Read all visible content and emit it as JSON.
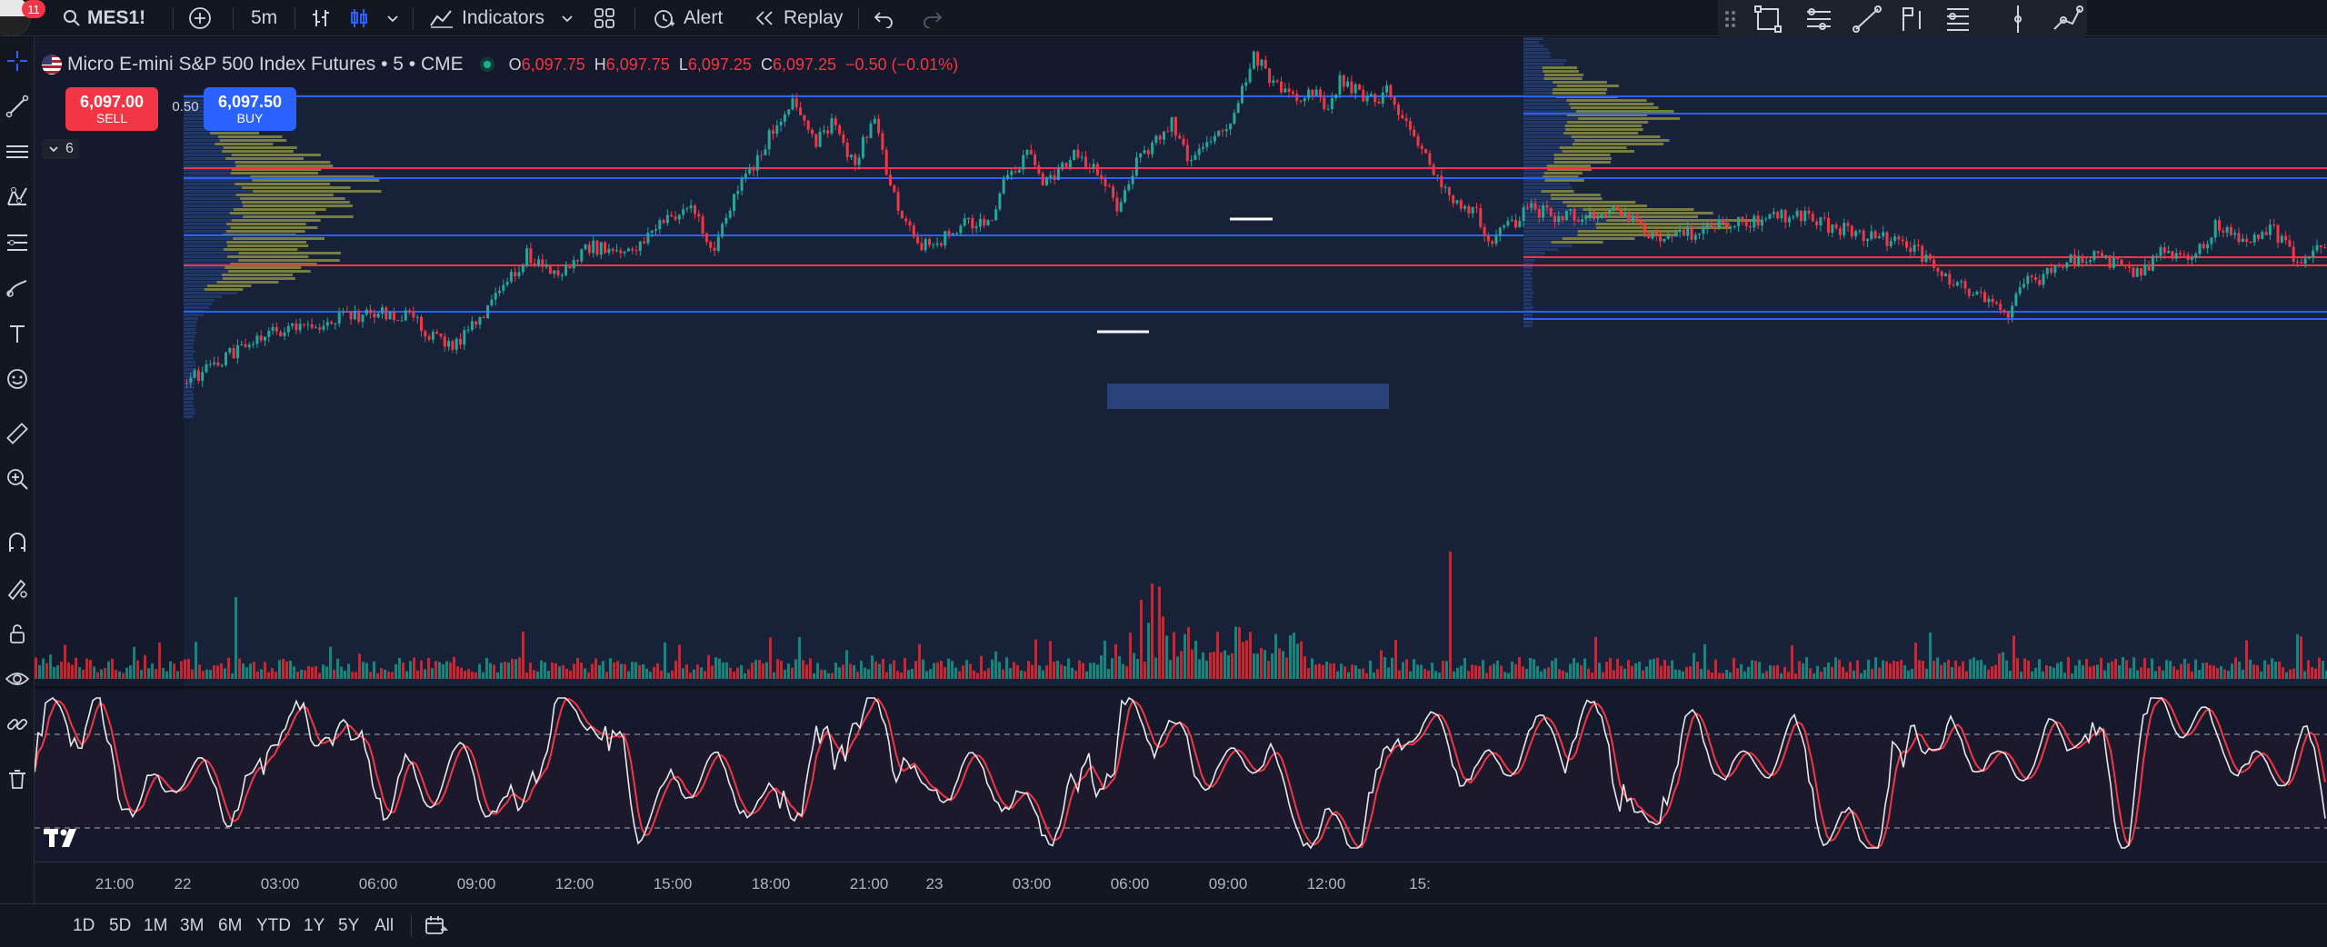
{
  "topbar": {
    "notifications": "11",
    "symbol": "MES1!",
    "interval": "5m",
    "indicators_label": "Indicators",
    "alert_label": "Alert",
    "replay_label": "Replay"
  },
  "legend": {
    "title": "Micro E-mini S&P 500 Index Futures • 5 • CME",
    "o_key": "O",
    "o_val": "6,097.75",
    "h_key": "H",
    "h_val": "6,097.75",
    "l_key": "L",
    "l_val": "6,097.25",
    "c_key": "C",
    "c_val": "6,097.25",
    "change": "−0.50 (−0.01%)",
    "collapse_count": "6"
  },
  "trade": {
    "sell_price": "6,097.00",
    "sell_label": "SELL",
    "spread": "0.50",
    "buy_price": "6,097.50",
    "buy_label": "BUY"
  },
  "time_axis": [
    "21:00",
    "22",
    "03:00",
    "06:00",
    "09:00",
    "12:00",
    "15:00",
    "18:00",
    "21:00",
    "23",
    "03:00",
    "06:00",
    "09:00",
    "12:00",
    "15:"
  ],
  "ranges": [
    "1D",
    "5D",
    "1M",
    "3M",
    "6M",
    "YTD",
    "1Y",
    "5Y",
    "All"
  ],
  "colors": {
    "up": "#26a69a",
    "down": "#f23645",
    "volume_profile": "#8a8a3c",
    "level_blue": "#2962ff",
    "level_red": "#f23645",
    "oscillator_k": "#e8e8e8",
    "oscillator_d": "#f23645"
  },
  "icons": {
    "left_toolbar": [
      "crosshair-icon",
      "trendline-icon",
      "horizontal-lines-icon",
      "pattern-icon",
      "fib-icon",
      "brush-icon",
      "text-icon",
      "emoji-icon",
      "ruler-icon",
      "zoom-in-icon",
      "magnet-icon",
      "lock-drawing-icon",
      "lock-icon",
      "eye-icon",
      "link-icon",
      "trash-icon"
    ],
    "drawing_toolbar": [
      "drag-handle-icon",
      "rectangle-icon",
      "parallel-channel-icon",
      "line-icon",
      "flag-icon",
      "fib-retracement-icon",
      "vertical-line-icon",
      "path-icon"
    ]
  }
}
